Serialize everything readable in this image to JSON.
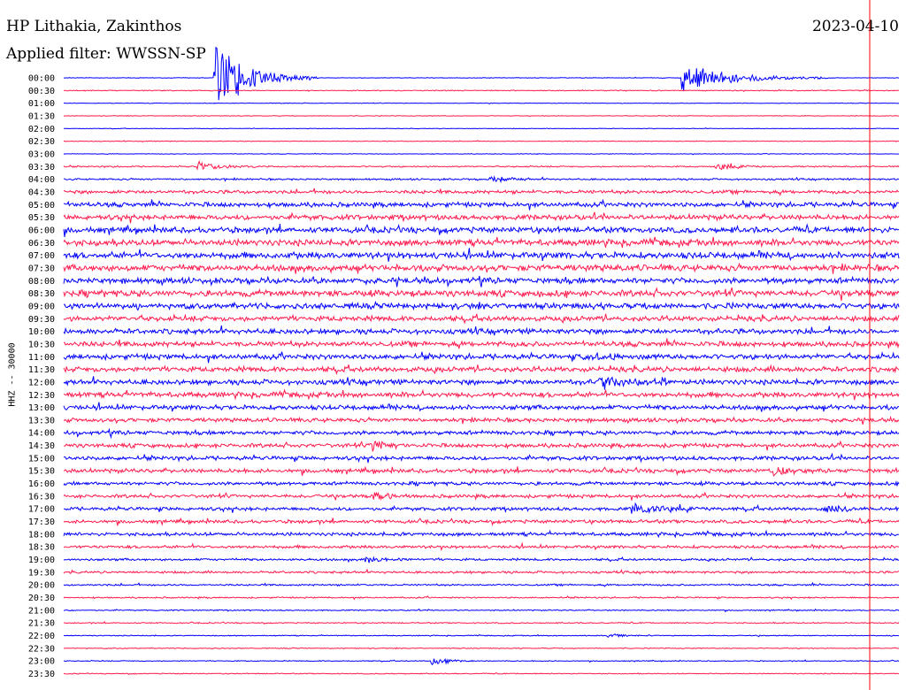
{
  "header": {
    "station": "HP Lithakia, Zakinthos",
    "filter": "Applied filter: WWSSN-SP",
    "date": "2023-04-10",
    "channel_label": "HHZ -- 30000"
  },
  "colors": {
    "odd": "#0000ff",
    "even": "#ff1a4d",
    "marker": "#ff0000"
  },
  "chart_data": {
    "type": "seismogram-helicorder",
    "title": "HP Lithakia, Zakinthos",
    "subtitle": "Applied filter: WWSSN-SP",
    "ylabel": "HHZ -- 30000",
    "tick_labels": [
      "00:00",
      "00:30",
      "01:00",
      "01:30",
      "02:00",
      "02:30",
      "03:00",
      "03:30",
      "04:00",
      "04:30",
      "05:00",
      "05:30",
      "06:00",
      "06:30",
      "07:00",
      "07:30",
      "08:00",
      "08:30",
      "09:00",
      "09:30",
      "10:00",
      "10:30",
      "11:00",
      "11:30",
      "12:00",
      "12:30",
      "13:00",
      "13:30",
      "14:00",
      "14:30",
      "15:00",
      "15:30",
      "16:00",
      "16:30",
      "17:00",
      "17:30",
      "18:00",
      "18:30",
      "19:00",
      "19:30",
      "20:00",
      "20:30",
      "21:00",
      "21:30",
      "22:00",
      "22:30",
      "23:00",
      "23:30"
    ],
    "row_minutes": 30,
    "noise_level": [
      0.05,
      0.08,
      0.05,
      0.05,
      0.05,
      0.06,
      0.05,
      0.12,
      0.15,
      0.3,
      0.4,
      0.45,
      0.5,
      0.55,
      0.55,
      0.55,
      0.5,
      0.55,
      0.5,
      0.45,
      0.45,
      0.45,
      0.45,
      0.45,
      0.45,
      0.45,
      0.4,
      0.35,
      0.35,
      0.35,
      0.35,
      0.35,
      0.3,
      0.3,
      0.3,
      0.3,
      0.3,
      0.25,
      0.2,
      0.2,
      0.15,
      0.12,
      0.1,
      0.1,
      0.08,
      0.08,
      0.08,
      0.08
    ],
    "events": [
      {
        "row": 0,
        "pos": 0.18,
        "amp": 9,
        "dur": 0.05
      },
      {
        "row": 0,
        "pos": 0.74,
        "amp": 3.5,
        "dur": 0.07
      },
      {
        "row": 7,
        "pos": 0.16,
        "amp": 1.2,
        "dur": 0.03
      },
      {
        "row": 7,
        "pos": 0.78,
        "amp": 1.0,
        "dur": 0.03
      },
      {
        "row": 8,
        "pos": 0.51,
        "amp": 0.9,
        "dur": 0.02
      },
      {
        "row": 22,
        "pos": 0.62,
        "amp": 0.8,
        "dur": 0.03
      },
      {
        "row": 24,
        "pos": 0.64,
        "amp": 1.0,
        "dur": 0.04
      },
      {
        "row": 29,
        "pos": 0.37,
        "amp": 1.2,
        "dur": 0.02
      },
      {
        "row": 31,
        "pos": 0.85,
        "amp": 1.4,
        "dur": 0.02
      },
      {
        "row": 33,
        "pos": 0.37,
        "amp": 1.3,
        "dur": 0.02
      },
      {
        "row": 34,
        "pos": 0.68,
        "amp": 0.9,
        "dur": 0.05
      },
      {
        "row": 34,
        "pos": 0.91,
        "amp": 1.3,
        "dur": 0.02
      },
      {
        "row": 38,
        "pos": 0.36,
        "amp": 1.0,
        "dur": 0.02
      },
      {
        "row": 44,
        "pos": 0.65,
        "amp": 0.8,
        "dur": 0.02
      },
      {
        "row": 46,
        "pos": 0.44,
        "amp": 1.5,
        "dur": 0.02
      }
    ]
  }
}
